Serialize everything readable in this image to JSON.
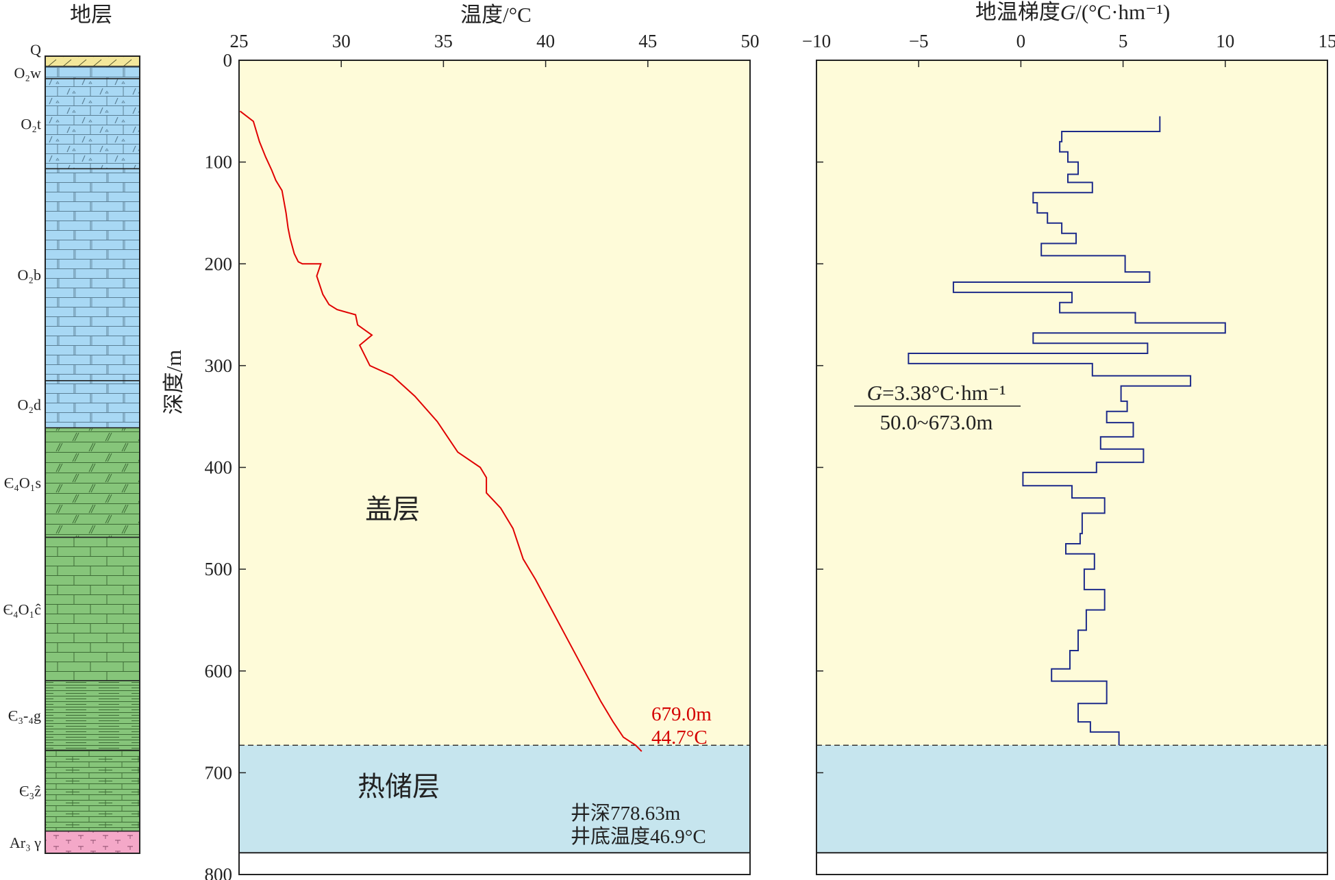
{
  "column": {
    "title": "地层",
    "layers": [
      {
        "label": "Q",
        "top": 0,
        "bottom": 10,
        "color": "#f3e79b",
        "pattern": "slash"
      },
      {
        "label": "O₂w",
        "top": 10,
        "bottom": 22,
        "color": "#a8d8f4",
        "pattern": "brick"
      },
      {
        "label": "O₂t",
        "top": 22,
        "bottom": 110,
        "color": "#a8d8f4",
        "pattern": "dolomite"
      },
      {
        "label": "O₂b",
        "top": 110,
        "bottom": 317,
        "color": "#a8d8f4",
        "pattern": "brick"
      },
      {
        "label": "O₂d",
        "top": 317,
        "bottom": 363,
        "color": "#a8d8f4",
        "pattern": "brick"
      },
      {
        "label": "Є₄O₁s",
        "top": 363,
        "bottom": 470,
        "color": "#86c57a",
        "pattern": "slashbrick"
      },
      {
        "label": "Є₄O₁ĉ",
        "top": 470,
        "bottom": 610,
        "color": "#86c57a",
        "pattern": "brick"
      },
      {
        "label": "Є₃-₄g",
        "top": 610,
        "bottom": 678,
        "color": "#86c57a",
        "pattern": "thin"
      },
      {
        "label": "Є₃ẑ",
        "top": 678,
        "bottom": 757,
        "color": "#86c57a",
        "pattern": "thinbrick"
      },
      {
        "label": "Ar₃ γ",
        "top": 757,
        "bottom": 778.63,
        "color": "#f4a8c8",
        "pattern": "granite"
      }
    ]
  },
  "zones": {
    "cap_label": "盖层",
    "reservoir_label": "热储层",
    "boundary_depth": 673,
    "cap_color": "#fefbd9",
    "reservoir_color": "#c6e5ee",
    "well_depth": 778.63
  },
  "annotations": {
    "end_depth": "679.0m",
    "end_temp": "44.7°C",
    "well_depth_note": "井深778.63m",
    "bottom_temp_note": "井底温度46.9°C",
    "gradient_formula": "G=3.38°C·hm⁻¹",
    "gradient_formula_var": "G",
    "gradient_formula_rest": "=3.38°C·hm⁻¹",
    "gradient_range": "50.0~673.0m"
  },
  "colors": {
    "temperature_line": "#e00000",
    "gradient_line": "#1c2a8a",
    "annotation_red": "#d40000"
  },
  "chart_data": [
    {
      "type": "line",
      "xlabel": "温度/°C",
      "ylabel": "深度/m",
      "xlim": [
        25,
        50
      ],
      "ylim": [
        800,
        0
      ],
      "x_ticks": [
        25,
        30,
        35,
        40,
        45,
        50
      ],
      "y_ticks": [
        0,
        100,
        200,
        300,
        400,
        500,
        600,
        700,
        800
      ],
      "x_axis_position": "top",
      "series": [
        {
          "x": [
            25.05,
            25.7,
            26.0,
            26.3,
            26.6,
            26.8,
            27.1,
            27.3,
            27.4,
            27.5,
            27.7,
            27.9,
            28.1,
            28.6,
            29.0,
            28.8,
            29.1,
            29.4,
            29.8,
            30.7,
            30.8,
            31.5,
            30.9,
            31.4,
            32.5,
            33.6,
            34.7,
            35.7,
            36.8,
            37.1,
            37.1,
            37.8,
            38.4,
            38.9,
            39.5,
            40.3,
            41.1,
            41.9,
            42.7,
            43.3,
            43.8,
            44.4,
            44.7
          ],
          "y": [
            50,
            60,
            80,
            95,
            108,
            118,
            128,
            150,
            165,
            175,
            190,
            198,
            200,
            200,
            200,
            212,
            230,
            240,
            245,
            250,
            260,
            270,
            280,
            300,
            310,
            330,
            355,
            385,
            400,
            410,
            425,
            440,
            460,
            490,
            510,
            540,
            570,
            600,
            630,
            650,
            665,
            673,
            679
          ]
        }
      ]
    },
    {
      "type": "line",
      "xlabel": "地温梯度G/(°C·hm⁻¹)",
      "xlabel_prefix": "地温梯度",
      "xlabel_var": "G",
      "xlabel_suffix": "/(°C·hm⁻¹)",
      "xlim": [
        -10,
        15
      ],
      "ylim": [
        800,
        0
      ],
      "x_ticks": [
        -10,
        -5,
        0,
        5,
        10,
        15
      ],
      "x_tick_labels": [
        "−10",
        "−5",
        "0",
        "5",
        "10",
        "15"
      ],
      "x_axis_position": "top",
      "series": [
        {
          "x": [
            6.8,
            2.0,
            1.9,
            2.3,
            2.8,
            2.3,
            3.5,
            0.6,
            0.8,
            1.3,
            2.0,
            2.7,
            1.0,
            5.1,
            6.3,
            -3.3,
            2.5,
            1.9,
            5.6,
            10.0,
            0.6,
            6.2,
            -5.5,
            3.5,
            8.3,
            4.9,
            5.2,
            4.2,
            5.5,
            3.9,
            6.0,
            3.7,
            0.1,
            2.5,
            4.1,
            3.0,
            2.9,
            2.2,
            3.6,
            3.1,
            4.1,
            3.2,
            2.8,
            2.4,
            1.5,
            4.2,
            2.8,
            3.4,
            4.8
          ],
          "y": [
            55,
            70,
            80,
            90,
            100,
            112,
            120,
            130,
            140,
            150,
            160,
            170,
            180,
            192,
            208,
            218,
            228,
            238,
            248,
            258,
            268,
            278,
            288,
            298,
            310,
            320,
            335,
            345,
            356,
            370,
            382,
            395,
            405,
            418,
            430,
            445,
            465,
            475,
            485,
            500,
            520,
            540,
            560,
            580,
            598,
            610,
            632,
            650,
            660
          ]
        }
      ]
    }
  ]
}
